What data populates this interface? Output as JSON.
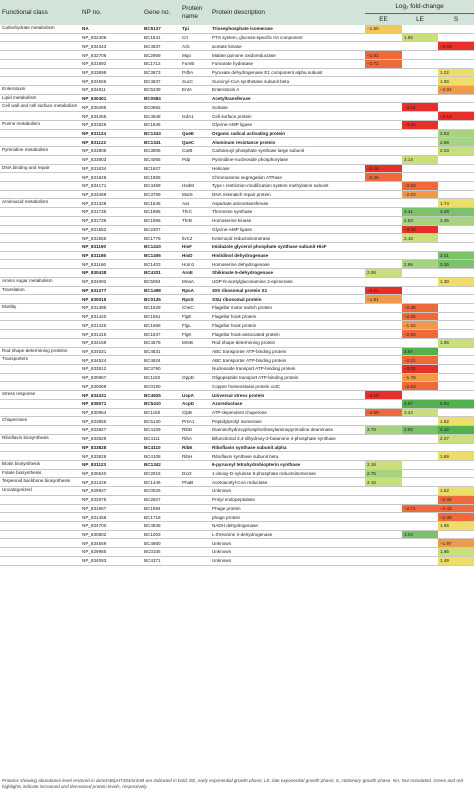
{
  "header": {
    "functional_class": "Functional class",
    "np_no": "NP no.",
    "gene_no": "Gene no.",
    "protein_name": "Protein name",
    "protein_description": "Protein description",
    "log2_fold_change": "Log₂ fold-change",
    "ee": "EE",
    "le": "LE",
    "s": "S"
  },
  "colors": {
    "header_bg": "#d2e4da",
    "red_dark": "#e8302a",
    "red_med": "#ee6a3a",
    "orange": "#f19b4a",
    "yellow_orange": "#f7c65a",
    "yellow": "#eddd6a",
    "yellow_green": "#c9e07a",
    "green_light": "#a6d483",
    "green_med": "#7cc26b",
    "green_dark": "#55b04e"
  },
  "rows": [
    {
      "fc": "Carbohydrate metabolism",
      "np": "NA",
      "gene": "BC5137",
      "pn": "Tpi",
      "pd": "Triosephosphate isomerase",
      "ee": "−1.50",
      "le": "",
      "s": "",
      "bold": true
    },
    {
      "fc": "",
      "np": "NP_832406",
      "gene": "BC1541",
      "pn": "Crr",
      "pd": "PTS system, glucose-specific IIA component",
      "ee": "",
      "le": "1.82",
      "s": "",
      "bold": false
    },
    {
      "fc": "",
      "np": "NP_834343",
      "gene": "BC4637",
      "pn": "Ack",
      "pd": "acetate kinase",
      "ee": "",
      "le": "",
      "s": "−3.55",
      "bold": false
    },
    {
      "fc": "",
      "np": "NP_832706",
      "gene": "BC2959",
      "pn": "Mqo",
      "pd": "Malate:quinone oxidoreductase",
      "ee": "−2.82",
      "le": "",
      "s": "",
      "bold": false
    },
    {
      "fc": "",
      "np": "NP_831892",
      "gene": "BC1712",
      "pn": "FumB",
      "pd": "Fumarate hydratase",
      "ee": "−2.71",
      "le": "",
      "s": "",
      "bold": false
    },
    {
      "fc": "",
      "np": "NP_833698",
      "gene": "BC3973",
      "pn": "PdhA",
      "pd": "Pyruvate dehydrogenase E1 component alpha subunit",
      "ee": "",
      "le": "",
      "s": "1.02",
      "bold": false
    },
    {
      "fc": "",
      "np": "NP_834555",
      "gene": "BC4837",
      "pn": "SucC",
      "pd": "Succinyl-CoA synthetase subunit beta",
      "ee": "",
      "le": "",
      "s": "1.66",
      "bold": false
    },
    {
      "fc": "Enterotoxin",
      "np": "NP_834811",
      "gene": "BC5239",
      "pn": "EntA",
      "pd": "Enterotoxin A",
      "ee": "",
      "le": "",
      "s": "−2.04",
      "bold": false
    },
    {
      "fc": "Lipid metabolism",
      "np": "NP_830401",
      "gene": "BC0584",
      "pn": "",
      "pd": "Acetyltransferase",
      "ee": "",
      "le": "",
      "s": "",
      "bold": true
    },
    {
      "fc": "Cell wall and cell surface metabolism",
      "np": "NP_830495",
      "gene": "BC0682",
      "pn": "",
      "pd": "Sortase",
      "ee": "",
      "le": "−3.01",
      "s": "",
      "bold": false
    },
    {
      "fc": "",
      "np": "NP_834255",
      "gene": "BC4548",
      "pn": "IsdA1",
      "pd": "Cell surface protein",
      "ee": "",
      "le": "",
      "s": "−4.19",
      "bold": false
    },
    {
      "fc": "Purine metabolism",
      "np": "NP_831826",
      "gene": "BC1645",
      "pn": "",
      "pd": "Glycine-AMP ligase",
      "ee": "",
      "le": "−3.84",
      "s": "",
      "bold": false
    },
    {
      "fc": "",
      "np": "NP_831124",
      "gene": "BC1343",
      "pn": "QueE",
      "pd": "Organic radical activating protein",
      "ee": "",
      "le": "",
      "s": "2.63",
      "bold": true
    },
    {
      "fc": "",
      "np": "NP_831122",
      "gene": "BC1341",
      "pn": "QueC",
      "pd": "Aluminum resistance protein",
      "ee": "",
      "le": "",
      "s": "2.88",
      "bold": true
    },
    {
      "fc": "Pyrimidine metabolism",
      "np": "NP_833806",
      "gene": "BC3806",
      "pn": "CarB",
      "pd": "Carbamoyl phosphate synthase large subunit",
      "ee": "",
      "le": "",
      "s": "2.03",
      "bold": false
    },
    {
      "fc": "",
      "np": "NP_833803",
      "gene": "BC4065",
      "pn": "Pdp",
      "pd": "Pyrimidine-nucleoside phosphorylase",
      "ee": "",
      "le": "2.14",
      "s": "",
      "bold": false
    },
    {
      "fc": "DNA binding and repair",
      "np": "NP_831634",
      "gene": "BC1627",
      "pn": "",
      "pd": "Helicase",
      "ee": "−3.16",
      "le": "",
      "s": "",
      "bold": false
    },
    {
      "fc": "",
      "np": "NP_831628",
      "gene": "BC1855",
      "pn": "",
      "pd": "Chromosome segregation ATPase",
      "ee": "−2.46",
      "le": "",
      "s": "",
      "bold": false
    },
    {
      "fc": "",
      "np": "NP_834171",
      "gene": "BC4459",
      "pn": "HsdM",
      "pd": "Type I restriction-modification system methylation subunit",
      "ee": "",
      "le": "−2.53",
      "s": "",
      "bold": false
    },
    {
      "fc": "",
      "np": "NP_833468",
      "gene": "BC3769",
      "pn": "MutS",
      "pd": "DNA mismatch repair protein",
      "ee": "",
      "le": "−2.03",
      "s": "",
      "bold": false
    },
    {
      "fc": "Aminoacid metabolism",
      "np": "NP_831328",
      "gene": "BC1546",
      "pn": "Aat",
      "pd": "Aspartate aminotransferase",
      "ee": "",
      "le": "",
      "s": "1.74",
      "bold": false
    },
    {
      "fc": "",
      "np": "NP_831735",
      "gene": "BC1965",
      "pn": "ThrC",
      "pd": "Threonine synthase",
      "ee": "",
      "le": "3.41",
      "s": "3.48",
      "bold": false
    },
    {
      "fc": "",
      "np": "NP_831736",
      "gene": "BC1966",
      "pn": "ThrB",
      "pd": "Homoserine kinase",
      "ee": "",
      "le": "2.53",
      "s": "2.35",
      "bold": false
    },
    {
      "fc": "",
      "np": "NP_831552",
      "gene": "BC2307",
      "pn": "",
      "pd": "Glycine-AMP ligase",
      "ee": "",
      "le": "−3.29",
      "s": "",
      "bold": false
    },
    {
      "fc": "",
      "np": "NP_831556",
      "gene": "BC1779",
      "pn": "IlvC2",
      "pd": "Ketol-acid reductoisomerase",
      "ee": "",
      "le": "2.15",
      "s": "",
      "bold": false
    },
    {
      "fc": "",
      "np": "NP_831190",
      "gene": "BC1410",
      "pn": "HisF",
      "pd": "Imidazole glycerol phosphate synthase subunit HisF",
      "ee": "",
      "le": "",
      "s": "",
      "bold": true
    },
    {
      "fc": "",
      "np": "NP_831186",
      "gene": "BC1406",
      "pn": "HisD",
      "pd": "Histidinol dehydrogenase",
      "ee": "",
      "le": "",
      "s": "3.41",
      "bold": true
    },
    {
      "fc": "",
      "np": "NP_831166",
      "gene": "BC1403",
      "pn": "Hom1",
      "pd": "Homoserine dehydrogenase",
      "ee": "",
      "le": "2.86",
      "s": "3.35",
      "bold": false
    },
    {
      "fc": "",
      "np": "NP_830438",
      "gene": "BC4331",
      "pn": "AroE",
      "pd": "Shikimate 5-dehydrogenase",
      "ee": "2.06",
      "le": "",
      "s": "",
      "bold": true
    },
    {
      "fc": "Amino sugar metabolism",
      "np": "NP_834092",
      "gene": "BC5064",
      "pn": "MnaA",
      "pd": "UDP-N-acetylglucosamine 2-epimerase",
      "ee": "",
      "le": "",
      "s": "1.30",
      "bold": false
    },
    {
      "fc": "Translation",
      "np": "NP_831277",
      "gene": "BC1498",
      "pn": "RpsA",
      "pd": "30S ribosomal protein S1",
      "ee": "−3.21",
      "le": "",
      "s": "",
      "bold": true
    },
    {
      "fc": "",
      "np": "NP_830015",
      "gene": "BC0135",
      "pn": "RpsS",
      "pd": "SSU ribosomal protein",
      "ee": "−1.81",
      "le": "",
      "s": "",
      "bold": true
    },
    {
      "fc": "Motility",
      "np": "NP_831395",
      "gene": "BC1629",
      "pn": "CheC",
      "pd": "Flagellar motor switch protein",
      "ee": "",
      "le": "−2.38",
      "s": "",
      "bold": false
    },
    {
      "fc": "",
      "np": "NP_831420",
      "gene": "BC1651",
      "pn": "FlgE",
      "pd": "Flagellar hook protein",
      "ee": "",
      "le": "−2.25",
      "s": "",
      "bold": false
    },
    {
      "fc": "",
      "np": "NP_831425",
      "gene": "BC1658",
      "pn": "FlgL",
      "pd": "Flagellar hook protein",
      "ee": "",
      "le": "−1.92",
      "s": "",
      "bold": false
    },
    {
      "fc": "",
      "np": "NP_831415",
      "gene": "BC1637",
      "pn": "FlgK",
      "pd": "Flagellar hook-associated protein",
      "ee": "",
      "le": "−2.56",
      "s": "",
      "bold": false
    },
    {
      "fc": "",
      "np": "NP_834158",
      "gene": "BC4579",
      "pn": "MreB",
      "pd": "Rod shape-determining protein",
      "ee": "",
      "le": "",
      "s": "1.95",
      "bold": false
    },
    {
      "fc": "Rod shape-determining proteins",
      "np": "NP_834531",
      "gene": "BC4831",
      "pn": "",
      "pd": "ABC transporter ATP-binding protein",
      "ee": "",
      "le": "3.67",
      "s": "",
      "bold": false
    },
    {
      "fc": "Transporters",
      "np": "NP_834524",
      "gene": "BC4824",
      "pn": "",
      "pd": "ABC transporter ATP-binding protein",
      "ee": "",
      "le": "−2.21",
      "s": "",
      "bold": false
    },
    {
      "fc": "",
      "np": "NP_833512",
      "gene": "BC3790",
      "pn": "",
      "pd": "Nucleoside transport ATP-binding protein",
      "ee": "",
      "le": "−3.02",
      "s": "",
      "bold": false
    },
    {
      "fc": "",
      "np": "NP_830967",
      "gene": "BC1182",
      "pn": "OppD",
      "pd": "Oligopeptide transport ATP-binding protein",
      "ee": "",
      "le": "−1.78",
      "s": "",
      "bold": false
    },
    {
      "fc": "",
      "np": "NP_830068",
      "gene": "BC0190",
      "pn": "",
      "pd": "Copper homeostasis protein cutC",
      "ee": "",
      "le": "−2.63",
      "s": "",
      "bold": false
    },
    {
      "fc": "Stress response",
      "np": "NP_834331",
      "gene": "BC4625",
      "pn": "UspA",
      "pd": "Universal stress protein",
      "ee": "−3.19",
      "le": "",
      "s": "",
      "bold": true
    },
    {
      "fc": "",
      "np": "NP_835071",
      "gene": "BC5410",
      "pn": "AcpD",
      "pd": "Azoreductase",
      "ee": "",
      "le": "4.87",
      "s": "5.83",
      "bold": true
    },
    {
      "fc": "",
      "np": "NP_830954",
      "gene": "BC1160",
      "pn": "ClpB",
      "pd": "ATP-dependent chaperone",
      "ee": "−2.99",
      "le": "2.24",
      "s": "",
      "bold": false
    },
    {
      "fc": "Chaperones",
      "np": "NP_833865",
      "gene": "BC5130",
      "pn": "PrsA1",
      "pd": "Peptidylprolyl isomerase",
      "ee": "",
      "le": "",
      "s": "1.62",
      "bold": false
    },
    {
      "fc": "",
      "np": "NP_833827",
      "gene": "BC4109",
      "pn": "RibD",
      "pd": "Diaminohydroxyphosphoribosylaminopyrimidine deaminase",
      "ee": "2.78",
      "le": "2.92",
      "s": "4.42",
      "bold": false
    },
    {
      "fc": "Riboflavin biosynthesis",
      "np": "NP_833829",
      "gene": "BC4111",
      "pn": "RibA",
      "pd": "Bifunctional 3,4-dihydroxy-2-butanone 4-phosphate synthase",
      "ee": "",
      "le": "",
      "s": "2.27",
      "bold": false
    },
    {
      "fc": "",
      "np": "NP_833828",
      "gene": "BC4110",
      "pn": "RibE",
      "pd": "Riboflavin synthase subunit alpha",
      "ee": "",
      "le": "",
      "s": "",
      "bold": true
    },
    {
      "fc": "",
      "np": "NP_833826",
      "gene": "BC4108",
      "pn": "RibH",
      "pd": "Riboflavin synthase subunit beta",
      "ee": "",
      "le": "",
      "s": "1.69",
      "bold": false
    },
    {
      "fc": "Biotin biosynthesis",
      "np": "NP_831123",
      "gene": "BC1342",
      "pn": "",
      "pd": "6-pyruvoyl tetrahydrobiopterin synthase",
      "ee": "2.16",
      "le": "",
      "s": "",
      "bold": true
    },
    {
      "fc": "Folate biosynthesis",
      "np": "NP_835540",
      "gene": "BC2915",
      "pn": "Dxr2",
      "pd": "1-deoxy-D-xylulose 5-phosphate reductoisomerase",
      "ee": "2.75",
      "le": "",
      "s": "",
      "bold": false
    },
    {
      "fc": "Terpenoid backbone biosynthesis",
      "np": "NP_831226",
      "gene": "BC1446",
      "pn": "PhaB",
      "pd": "Acetoacetyl-CoA reductase",
      "ee": "2.16",
      "le": "",
      "s": "",
      "bold": false
    },
    {
      "fc": "Uncategorized",
      "np": "NP_829927",
      "gene": "BC0025",
      "pn": "",
      "pd": "Unknown",
      "ee": "",
      "le": "",
      "s": "1.52",
      "bold": false
    },
    {
      "fc": "",
      "np": "NP_832675",
      "gene": "BC2927",
      "pn": "",
      "pd": "Prolyl endopeptidase",
      "ee": "",
      "le": "",
      "s": "−2.34",
      "bold": false
    },
    {
      "fc": "",
      "np": "NP_831667",
      "gene": "BC1894",
      "pn": "",
      "pd": "Phage protein",
      "ee": "",
      "le": "−2.71",
      "s": "−2.43",
      "bold": false
    },
    {
      "fc": "",
      "np": "NP_831458",
      "gene": "BC1718",
      "pn": "",
      "pd": "phage protein",
      "ee": "",
      "le": "",
      "s": "−2.36",
      "bold": false
    },
    {
      "fc": "",
      "np": "NP_834700",
      "gene": "BC4938",
      "pn": "",
      "pd": "NADH dehydrogenase",
      "ee": "",
      "le": "",
      "s": "1.66",
      "bold": false
    },
    {
      "fc": "",
      "np": "NP_830802",
      "gene": "BC1003",
      "pn": "",
      "pd": "L-threonine 3-dehydrogenase",
      "ee": "",
      "le": "3.04",
      "s": "",
      "bold": false
    },
    {
      "fc": "",
      "np": "NP_834559",
      "gene": "BC4860",
      "pn": "",
      "pd": "Unknown",
      "ee": "",
      "le": "",
      "s": "−1.97",
      "bold": false
    },
    {
      "fc": "",
      "np": "NP_829985",
      "gene": "BC0105",
      "pn": "",
      "pd": "Unknown",
      "ee": "",
      "le": "",
      "s": "1.85",
      "bold": false
    },
    {
      "fc": "",
      "np": "NP_834083",
      "gene": "BC4371",
      "pn": "",
      "pd": "Unknown",
      "ee": "",
      "le": "",
      "s": "1.49",
      "bold": false
    }
  ],
  "footer": "Proteins showing abundance level restored in ΔmntAB/pHT304mntAB are indicated in bold. EE, early exponential growth phase; LE, late exponential growth phase; S, stationary growth phase. NA, Not Annotated. Green and red highlights indicate increased and decreased protein levels, respectively."
}
